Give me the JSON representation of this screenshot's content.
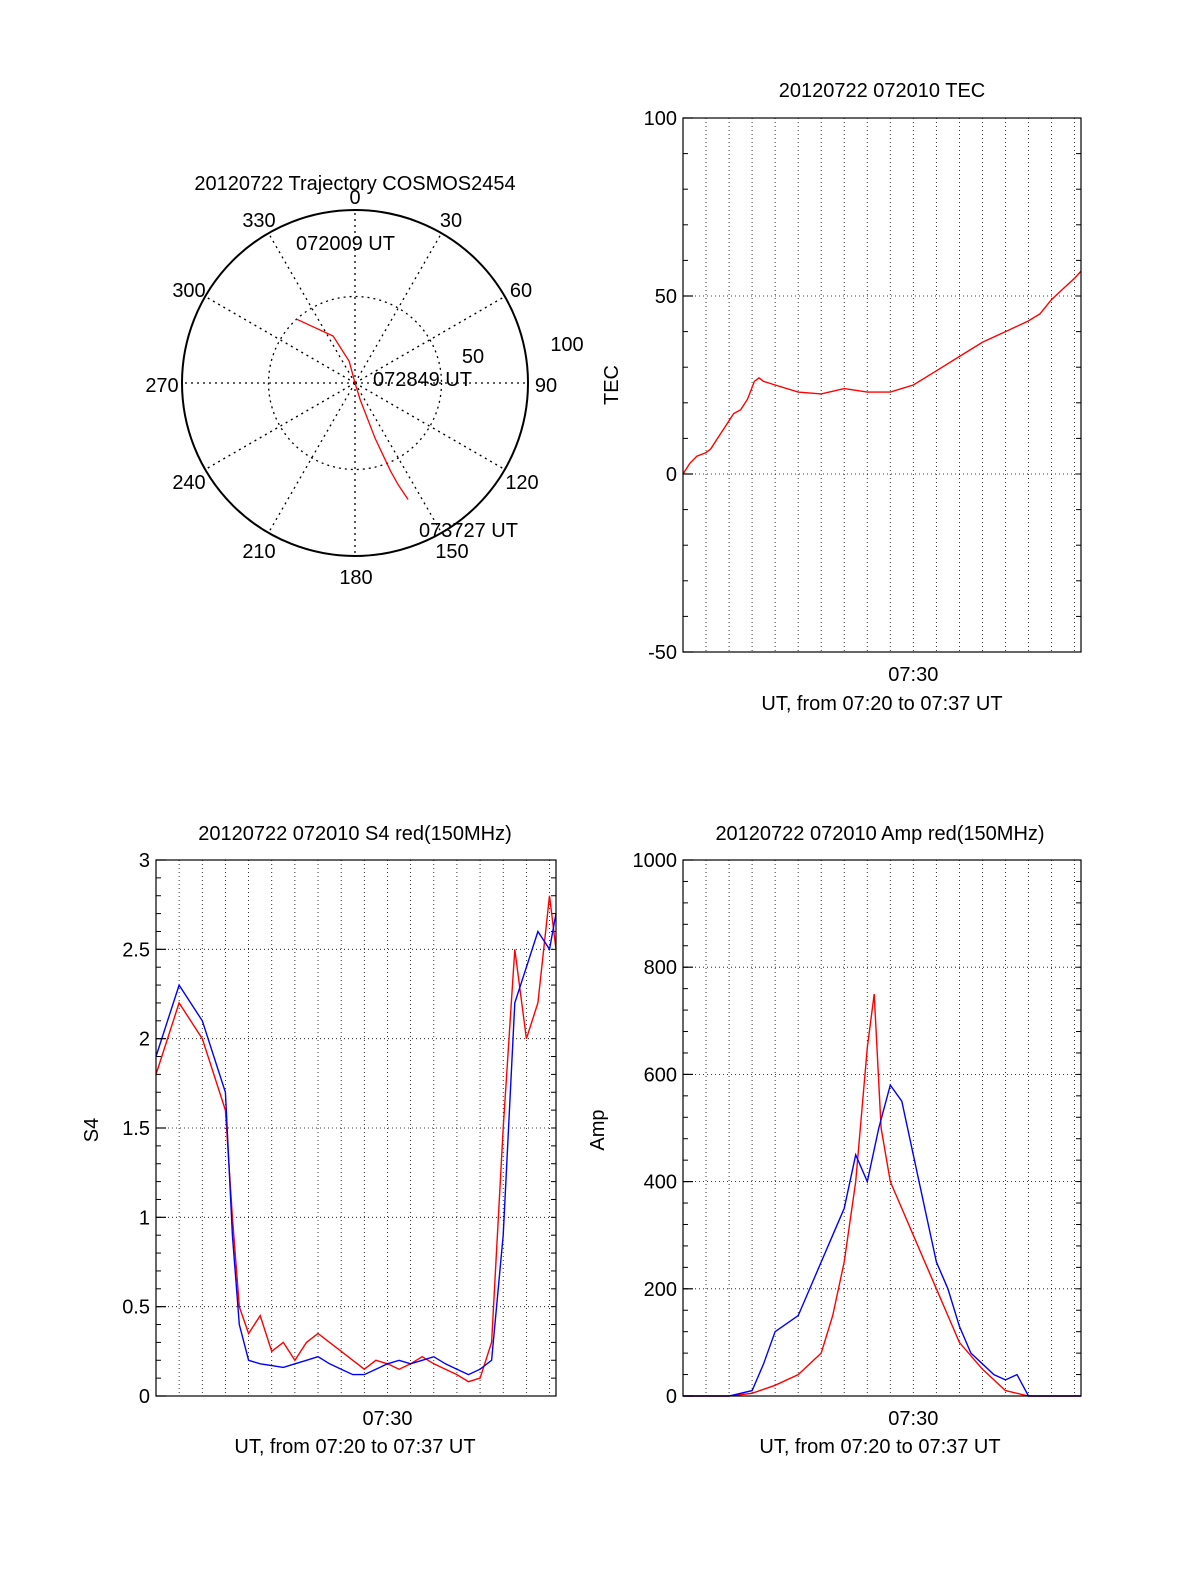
{
  "chart_data": [
    {
      "type": "polar",
      "title": "20120722 Trajectory COSMOS2454",
      "azimuth_labels": [
        "0",
        "30",
        "60",
        "90",
        "120",
        "150",
        "180",
        "210",
        "240",
        "270",
        "300",
        "330"
      ],
      "radial_labels": [
        "50",
        "100"
      ],
      "annotations": [
        "072009 UT",
        "072849 UT",
        "073727 UT"
      ],
      "series": [
        {
          "color": "#ff0000",
          "points": [
            [
              -42.5,
              50
            ],
            [
              -25,
              30
            ],
            [
              -15,
              13
            ],
            [
              0,
              0
            ],
            [
              163,
              10
            ],
            [
              160,
              34
            ],
            [
              158,
              55
            ],
            [
              157,
              64
            ],
            [
              155.5,
              74
            ]
          ]
        }
      ]
    },
    {
      "type": "line",
      "title": "20120722 072010 TEC",
      "xlabel": "UT, from 07:20 to 07:37 UT",
      "ylabel": "TEC",
      "xlim": [
        0,
        17.28
      ],
      "ylim": [
        -50,
        100
      ],
      "yticks": [
        "-50",
        "0",
        "50",
        "100"
      ],
      "xtick_label": "07:30",
      "xtick_value": 10,
      "grid": true,
      "series": [
        {
          "color": "#ff0000",
          "x": [
            0.0,
            0.3,
            0.6,
            1.0,
            1.2,
            1.5,
            1.8,
            2.2,
            2.5,
            2.8,
            3.1,
            3.3,
            3.5,
            4.0,
            5.0,
            6.0,
            7.0,
            8.0,
            9.0,
            10.0,
            11.0,
            12.0,
            13.0,
            14.0,
            15.0,
            15.5,
            16.0,
            16.5,
            17.0,
            17.28
          ],
          "y": [
            0,
            3,
            5,
            6,
            7,
            10,
            13,
            17,
            18,
            21,
            26,
            27,
            26,
            25,
            23,
            22.5,
            24,
            23,
            23,
            25,
            29,
            33,
            37,
            40,
            43,
            45,
            49,
            52,
            55,
            57
          ]
        }
      ]
    },
    {
      "type": "line",
      "title": "20120722 072010 S4 red(150MHz)",
      "xlabel": "UT, from 07:20 to 07:37 UT",
      "ylabel": "S4",
      "xlim": [
        0,
        17.28
      ],
      "ylim": [
        0,
        3
      ],
      "yticks": [
        "0",
        "0.5",
        "1",
        "1.5",
        "2",
        "2.5",
        "3"
      ],
      "xtick_label": "07:30",
      "xtick_value": 10,
      "grid": true,
      "series": [
        {
          "color": "#ff0000",
          "x": [
            0,
            1,
            2,
            3,
            3.3,
            3.6,
            4,
            4.5,
            5,
            5.5,
            6,
            6.5,
            7,
            7.5,
            8,
            8.5,
            9,
            9.5,
            10,
            10.5,
            11,
            11.5,
            12,
            12.5,
            13,
            13.5,
            14,
            14.5,
            15,
            15.5,
            16,
            16.5,
            17,
            17.28
          ],
          "y": [
            1.8,
            2.2,
            2.0,
            1.6,
            1.0,
            0.5,
            0.35,
            0.45,
            0.25,
            0.3,
            0.2,
            0.3,
            0.35,
            0.3,
            0.25,
            0.2,
            0.15,
            0.2,
            0.18,
            0.15,
            0.18,
            0.22,
            0.18,
            0.15,
            0.12,
            0.08,
            0.1,
            0.3,
            1.5,
            2.5,
            2.0,
            2.2,
            2.8,
            2.5
          ]
        },
        {
          "color": "#0000ff",
          "x": [
            0,
            1,
            2,
            3,
            3.3,
            3.6,
            4,
            4.5,
            5,
            5.5,
            6,
            6.5,
            7,
            7.5,
            8,
            8.5,
            9,
            9.5,
            10,
            10.5,
            11,
            11.5,
            12,
            12.5,
            13,
            13.5,
            14,
            14.5,
            15,
            15.5,
            16,
            16.5,
            17,
            17.28
          ],
          "y": [
            1.9,
            2.3,
            2.1,
            1.7,
            0.9,
            0.4,
            0.2,
            0.18,
            0.17,
            0.16,
            0.18,
            0.2,
            0.22,
            0.18,
            0.15,
            0.12,
            0.12,
            0.15,
            0.18,
            0.2,
            0.18,
            0.2,
            0.22,
            0.18,
            0.15,
            0.12,
            0.15,
            0.2,
            0.9,
            2.2,
            2.4,
            2.6,
            2.5,
            2.7
          ]
        }
      ]
    },
    {
      "type": "line",
      "title": "20120722 072010 Amp red(150MHz)",
      "xlabel": "UT, from 07:20 to 07:37 UT",
      "ylabel": "Amp",
      "xlim": [
        0,
        17.28
      ],
      "ylim": [
        0,
        1000
      ],
      "yticks": [
        "0",
        "200",
        "400",
        "600",
        "800",
        "1000"
      ],
      "xtick_label": "07:30",
      "xtick_value": 10,
      "grid": true,
      "series": [
        {
          "color": "#ff0000",
          "x": [
            0,
            2,
            3,
            4,
            5,
            6,
            6.5,
            7,
            7.5,
            8,
            8.3,
            8.6,
            9,
            9.5,
            10,
            10.5,
            11,
            11.5,
            12,
            13,
            14,
            15,
            17.28
          ],
          "y": [
            0,
            0,
            5,
            20,
            40,
            80,
            150,
            250,
            400,
            650,
            750,
            500,
            400,
            350,
            300,
            250,
            200,
            150,
            100,
            50,
            10,
            0,
            0
          ]
        },
        {
          "color": "#0000ff",
          "x": [
            0,
            2,
            3,
            3.5,
            4,
            5,
            6,
            6.5,
            7,
            7.5,
            8,
            8.5,
            9,
            9.5,
            10,
            10.5,
            11,
            11.5,
            12,
            12.5,
            13,
            13.5,
            14,
            14.5,
            15,
            17.28
          ],
          "y": [
            0,
            0,
            10,
            60,
            120,
            150,
            250,
            300,
            350,
            450,
            400,
            500,
            580,
            550,
            450,
            350,
            250,
            200,
            130,
            80,
            60,
            40,
            30,
            40,
            0,
            0
          ]
        }
      ]
    }
  ]
}
